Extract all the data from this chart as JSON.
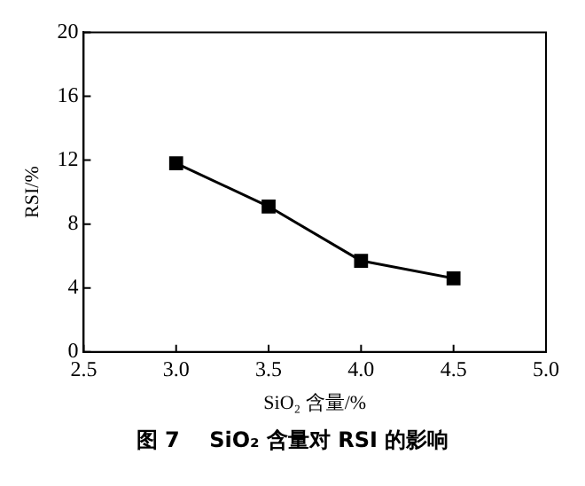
{
  "chart_data": {
    "type": "line",
    "xlabel": "SiO₂ 含量/%",
    "ylabel": "RSI/%",
    "annotations": [
      "图 7    SiO₂ 含量对 RSI 的影响"
    ],
    "x": [
      3.0,
      3.5,
      4.0,
      4.5
    ],
    "series": [
      {
        "color": "#000000",
        "values": [
          11.8,
          9.1,
          5.7,
          4.6
        ]
      }
    ],
    "xlim": [
      2.5,
      5.0
    ],
    "xticks": [
      {
        "value": 2.5,
        "label": "2.5"
      },
      {
        "value": 3.0,
        "label": "3.0"
      },
      {
        "value": 3.5,
        "label": "3.5"
      },
      {
        "value": 4.0,
        "label": "4.0"
      },
      {
        "value": 4.5,
        "label": "4.5"
      },
      {
        "value": 5.0,
        "label": "5.0"
      }
    ],
    "ylim": [
      0,
      20
    ],
    "yticks": [
      0,
      4,
      8,
      12,
      16,
      20
    ],
    "grid": false,
    "legend": false,
    "marker": "square",
    "line_style": "solid"
  }
}
